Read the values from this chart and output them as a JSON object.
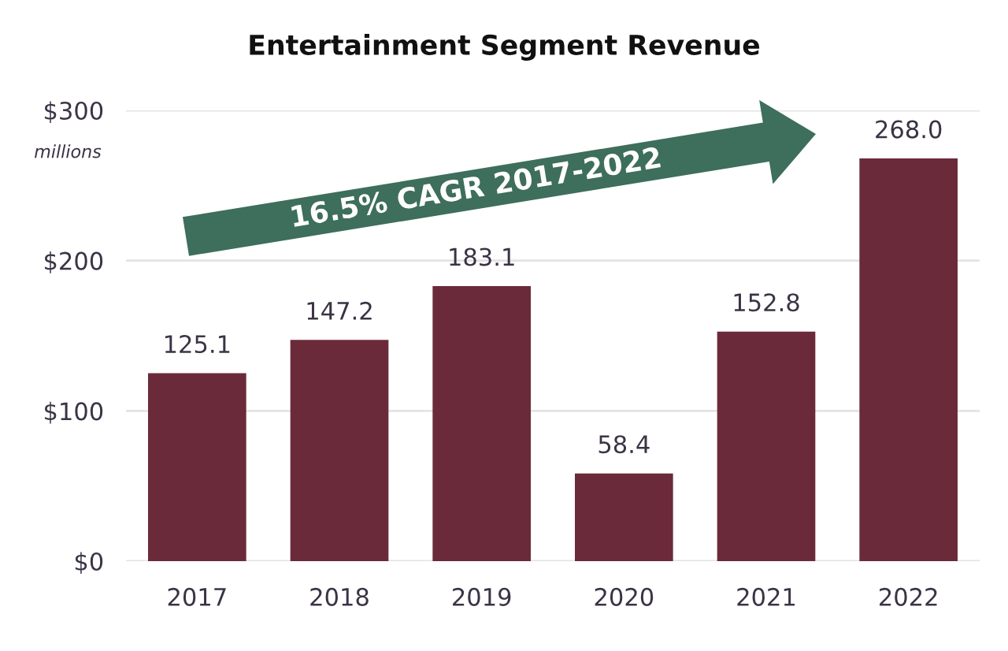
{
  "chart_data": {
    "type": "bar",
    "title": "Entertainment Segment Revenue",
    "categories": [
      "2017",
      "2018",
      "2019",
      "2020",
      "2021",
      "2022"
    ],
    "values": [
      125.1,
      147.2,
      183.1,
      58.4,
      152.8,
      268.0
    ],
    "value_labels": [
      "125.1",
      "147.2",
      "183.1",
      "58.4",
      "152.8",
      "268.0"
    ],
    "color": "#6b2a3a",
    "ylim": [
      0,
      300
    ],
    "yticks": [
      {
        "value": 0,
        "label": "$0"
      },
      {
        "value": 100,
        "label": "$100"
      },
      {
        "value": 200,
        "label": "$200"
      },
      {
        "value": 300,
        "label": "$300"
      }
    ],
    "grid": "y",
    "annotations": [
      "millions",
      "16.5% CAGR 2017-2022"
    ]
  }
}
